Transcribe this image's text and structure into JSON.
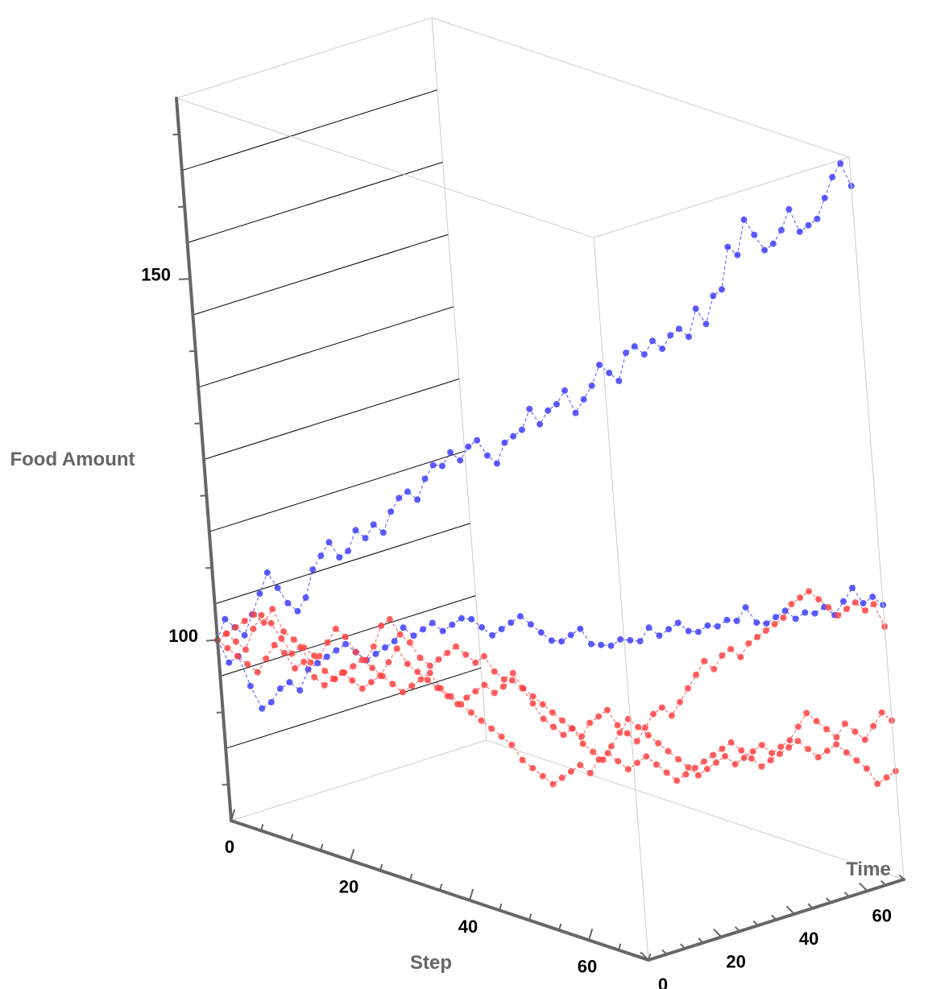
{
  "chart_data": {
    "type": "scatter",
    "dimensions": 3,
    "xlabel": "Step",
    "ylabel": "Time",
    "zlabel": "Food Amount",
    "xlim": [
      0,
      70
    ],
    "ylim": [
      0,
      70
    ],
    "zlim": [
      75,
      175
    ],
    "x_ticks": [
      "0",
      "20",
      "40",
      "60"
    ],
    "y_ticks": [
      "0",
      "20",
      "40",
      "60"
    ],
    "z_ticks": [
      "100",
      "150"
    ],
    "z_gridlines": [
      85,
      95,
      105,
      115,
      125,
      135,
      145,
      155,
      165
    ],
    "grid": false,
    "box": true,
    "joined": true,
    "series": [
      {
        "color": "#4040ff",
        "values": [
          100,
          103,
          102,
          101,
          104,
          107,
          110,
          108,
          106,
          105,
          107,
          111,
          113,
          115,
          113,
          114,
          117,
          116,
          118,
          117,
          120,
          122,
          123,
          122,
          125,
          127,
          127,
          129,
          128,
          130,
          131,
          129,
          128,
          131,
          132,
          133,
          136,
          134,
          136,
          137,
          139,
          136,
          138,
          140,
          143,
          142,
          141,
          145,
          146,
          145,
          147,
          146,
          148,
          149,
          148,
          152,
          150,
          154,
          155,
          161,
          160,
          165,
          163,
          161,
          162,
          164,
          167,
          164,
          165,
          166,
          169,
          172,
          174,
          171
        ]
      },
      {
        "color": "#4040ff",
        "values": [
          100,
          97,
          98,
          94,
          91,
          92,
          94,
          95,
          94,
          97,
          98,
          99,
          100,
          101,
          100,
          99,
          100,
          101,
          102,
          104,
          103,
          104,
          105,
          104,
          105,
          106,
          106,
          105,
          104,
          105,
          106,
          107,
          106,
          105,
          104,
          104,
          105,
          106,
          104,
          104,
          104,
          105,
          105,
          105,
          107,
          106,
          107,
          108,
          107,
          107,
          108,
          108,
          109,
          109,
          111,
          109,
          109,
          110,
          111,
          110,
          111,
          111,
          112,
          111,
          113,
          115,
          113,
          114,
          113
        ]
      },
      {
        "color": "#ff4444",
        "values": [
          100,
          101,
          102,
          103,
          104,
          103,
          105,
          102,
          101,
          100,
          99,
          97,
          96,
          97,
          98,
          99,
          98,
          97,
          96,
          95,
          96,
          97,
          98,
          96,
          95,
          94,
          93,
          92,
          91,
          90,
          89,
          87,
          86,
          85,
          84,
          85,
          86,
          87,
          86,
          88,
          89,
          88,
          87,
          88,
          89,
          88,
          87,
          86,
          87,
          88,
          89,
          90,
          91,
          92,
          91,
          90,
          89,
          90,
          91,
          92,
          93,
          92,
          91,
          92,
          93,
          92,
          91,
          90,
          88,
          89,
          90
        ]
      },
      {
        "color": "#ff4444",
        "values": [
          100,
          99,
          98,
          97,
          96,
          98,
          100,
          99,
          97,
          98,
          96,
          95,
          96,
          97,
          96,
          95,
          96,
          97,
          99,
          101,
          99,
          98,
          97,
          96,
          95,
          94,
          95,
          96,
          97,
          96,
          97,
          98,
          97,
          95,
          93,
          92,
          91,
          92,
          90,
          89,
          88,
          90,
          92,
          94,
          93,
          92,
          91,
          90,
          89,
          88,
          87,
          88,
          89,
          90,
          89,
          90,
          91,
          92,
          91,
          92,
          93,
          95,
          97,
          96,
          95,
          94,
          96,
          95,
          94,
          96,
          98,
          97
        ]
      },
      {
        "color": "#ff4444",
        "values": [
          100,
          101,
          100,
          99,
          102,
          104,
          103,
          101,
          99,
          100,
          98,
          99,
          101,
          103,
          102,
          100,
          99,
          101,
          104,
          105,
          103,
          102,
          100,
          99,
          100,
          101,
          102,
          101,
          100,
          101,
          99,
          98,
          99,
          97,
          96,
          95,
          94,
          93,
          92,
          91,
          93,
          94,
          95,
          93,
          92,
          91,
          93,
          95,
          96,
          95,
          97,
          99,
          101,
          103,
          102,
          104,
          105,
          104,
          106,
          107,
          108,
          109,
          110,
          112,
          113,
          114,
          113,
          112,
          111,
          112,
          113,
          112,
          113,
          110
        ]
      }
    ]
  }
}
